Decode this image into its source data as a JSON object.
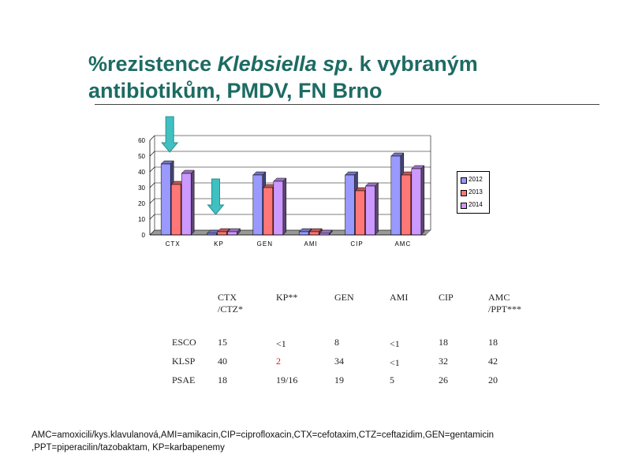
{
  "slide": {
    "title_parts": [
      "%rezistence ",
      "Klebsiella sp",
      ". k vybraným"
    ],
    "title_line2": "antibiotikům, PMDV, FN Brno",
    "footnote_line1": "AMC=amoxicili/kys.klavulanová,AMI=amikacin,CIP=ciprofloxacin,CTX=cefotaxim,CTZ=ceftazidim,GEN=gentamicin",
    "footnote_line2": ",PPT=piperacilin/tazobaktam, KP=karbapenemy"
  },
  "colors": {
    "title": "#1d6b63",
    "series": [
      "#9999ff",
      "#ff7777",
      "#cc99ff"
    ],
    "arrow": "#40c0c0"
  },
  "chart_data": {
    "type": "bar",
    "categories": [
      "CTX",
      "KP",
      "GEN",
      "AMI",
      "CIP",
      "AMC"
    ],
    "series": [
      {
        "name": "2012",
        "values": [
          45,
          1,
          38,
          2,
          38,
          50
        ]
      },
      {
        "name": "2013",
        "values": [
          32,
          2,
          30,
          2,
          28,
          38
        ]
      },
      {
        "name": "2014",
        "values": [
          39,
          2,
          34,
          1,
          31,
          42
        ]
      }
    ],
    "ylim": [
      0,
      60
    ],
    "yticks": [
      "0",
      "10",
      "20",
      "30",
      "40",
      "50",
      "60"
    ],
    "grid": true,
    "legend": "right",
    "highlighted_categories": [
      "CTX",
      "KP"
    ]
  },
  "table": {
    "headers": [
      [
        "CTX",
        "/CTZ*"
      ],
      [
        "KP**",
        ""
      ],
      [
        "GEN",
        ""
      ],
      [
        "AMI",
        ""
      ],
      [
        "CIP",
        ""
      ],
      [
        "AMC",
        "/PPT***"
      ]
    ],
    "rows": [
      {
        "label": "ESCO",
        "cells": [
          "15",
          "<1",
          "8",
          "<1",
          "18",
          "18"
        ]
      },
      {
        "label": "KLSP",
        "cells": [
          "40",
          "2",
          "34",
          "<1",
          "32",
          "42"
        ]
      },
      {
        "label": "PSAE",
        "cells": [
          "18",
          "19/16",
          "19",
          "5",
          "26",
          "20"
        ]
      }
    ]
  }
}
